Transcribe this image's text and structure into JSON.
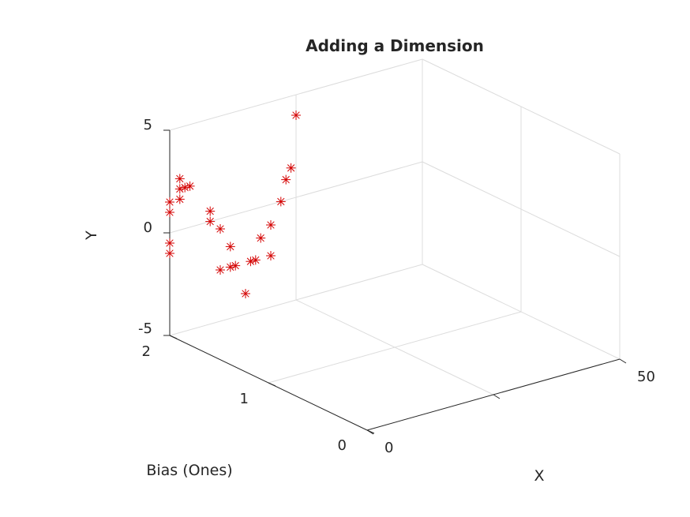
{
  "chart_data": {
    "type": "scatter3d",
    "title": "Adding a Dimension",
    "xlabel": "X",
    "ylabel": "Y",
    "zlabel": "Bias (Ones)",
    "xlim": [
      0,
      50
    ],
    "ylim": [
      -5,
      5
    ],
    "zlim": [
      0,
      2
    ],
    "x_ticks": [
      "0",
      "50"
    ],
    "y_ticks": [
      "-5",
      "0",
      "5"
    ],
    "z_ticks": [
      "0",
      "1",
      "2"
    ],
    "grid": true,
    "marker": "asterisk",
    "marker_color": "#d40000",
    "points": [
      {
        "x": 0,
        "y": 1,
        "z": 2
      },
      {
        "x": 0,
        "y": -0.5,
        "z": 2
      },
      {
        "x": 0,
        "y": -1,
        "z": 2
      },
      {
        "x": 0,
        "y": 1.5,
        "z": 2
      },
      {
        "x": 2,
        "y": 1.5,
        "z": 2
      },
      {
        "x": 2,
        "y": 2,
        "z": 2
      },
      {
        "x": 2,
        "y": 2.5,
        "z": 2
      },
      {
        "x": 3,
        "y": 2,
        "z": 2
      },
      {
        "x": 4,
        "y": 2,
        "z": 2
      },
      {
        "x": 8,
        "y": 0.5,
        "z": 2
      },
      {
        "x": 8,
        "y": 0,
        "z": 2
      },
      {
        "x": 10,
        "y": -0.5,
        "z": 2
      },
      {
        "x": 12,
        "y": -1.5,
        "z": 2
      },
      {
        "x": 10,
        "y": -2.5,
        "z": 2
      },
      {
        "x": 12,
        "y": -2.5,
        "z": 2
      },
      {
        "x": 13,
        "y": -2.5,
        "z": 2
      },
      {
        "x": 15,
        "y": -4,
        "z": 2
      },
      {
        "x": 16,
        "y": -2.5,
        "z": 2
      },
      {
        "x": 17,
        "y": -2.5,
        "z": 2
      },
      {
        "x": 18,
        "y": -1.5,
        "z": 2
      },
      {
        "x": 20,
        "y": -2.5,
        "z": 2
      },
      {
        "x": 20,
        "y": -1,
        "z": 2
      },
      {
        "x": 22,
        "y": 0,
        "z": 2
      },
      {
        "x": 23,
        "y": 1,
        "z": 2
      },
      {
        "x": 24,
        "y": 1.5,
        "z": 2
      },
      {
        "x": 25,
        "y": 4,
        "z": 2
      }
    ]
  }
}
